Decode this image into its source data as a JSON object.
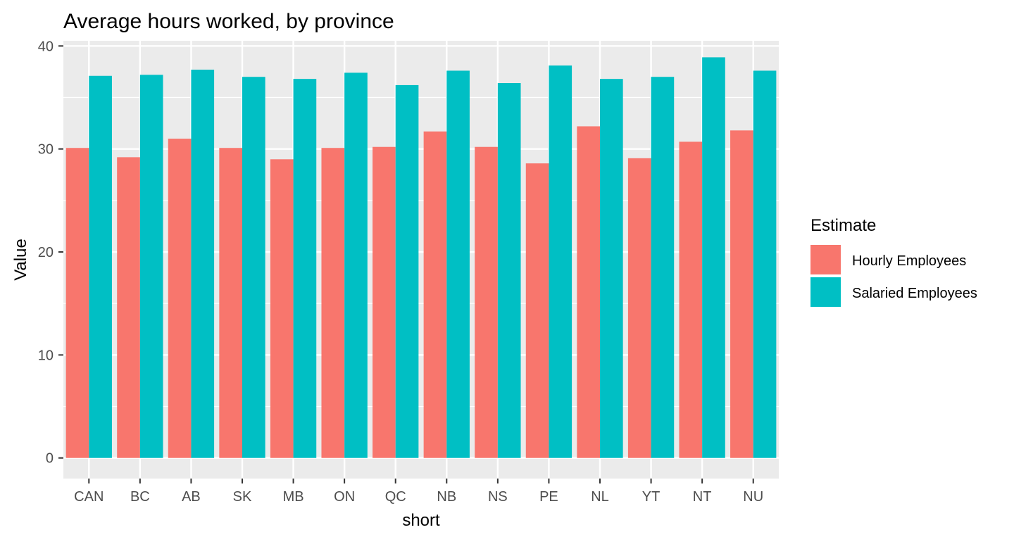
{
  "chart_data": {
    "type": "bar",
    "title": "Average hours worked, by province",
    "xlabel": "short",
    "ylabel": "Value",
    "categories": [
      "CAN",
      "BC",
      "AB",
      "SK",
      "MB",
      "ON",
      "QC",
      "NB",
      "NS",
      "PE",
      "NL",
      "YT",
      "NT",
      "NU"
    ],
    "series": [
      {
        "name": "Hourly Employees",
        "color": "#F8766D",
        "values": [
          30.1,
          29.2,
          31.0,
          30.1,
          29.0,
          30.1,
          30.2,
          31.7,
          30.2,
          28.6,
          32.2,
          29.1,
          30.7,
          31.8
        ]
      },
      {
        "name": "Salaried Employees",
        "color": "#00BFC4",
        "values": [
          37.1,
          37.2,
          37.7,
          37.0,
          36.8,
          37.4,
          36.2,
          37.6,
          36.4,
          38.1,
          36.8,
          37.0,
          38.9,
          37.6
        ]
      }
    ],
    "ylim": [
      -2,
      40.5
    ],
    "yticks": [
      0,
      10,
      20,
      30,
      40
    ],
    "ytick_labels": [
      "0",
      "10",
      "20",
      "30",
      "40"
    ],
    "grid": true,
    "legend": {
      "title": "Estimate",
      "position": "right"
    },
    "panel_background": "#EBEBEB",
    "grid_color": "#FFFFFF"
  }
}
